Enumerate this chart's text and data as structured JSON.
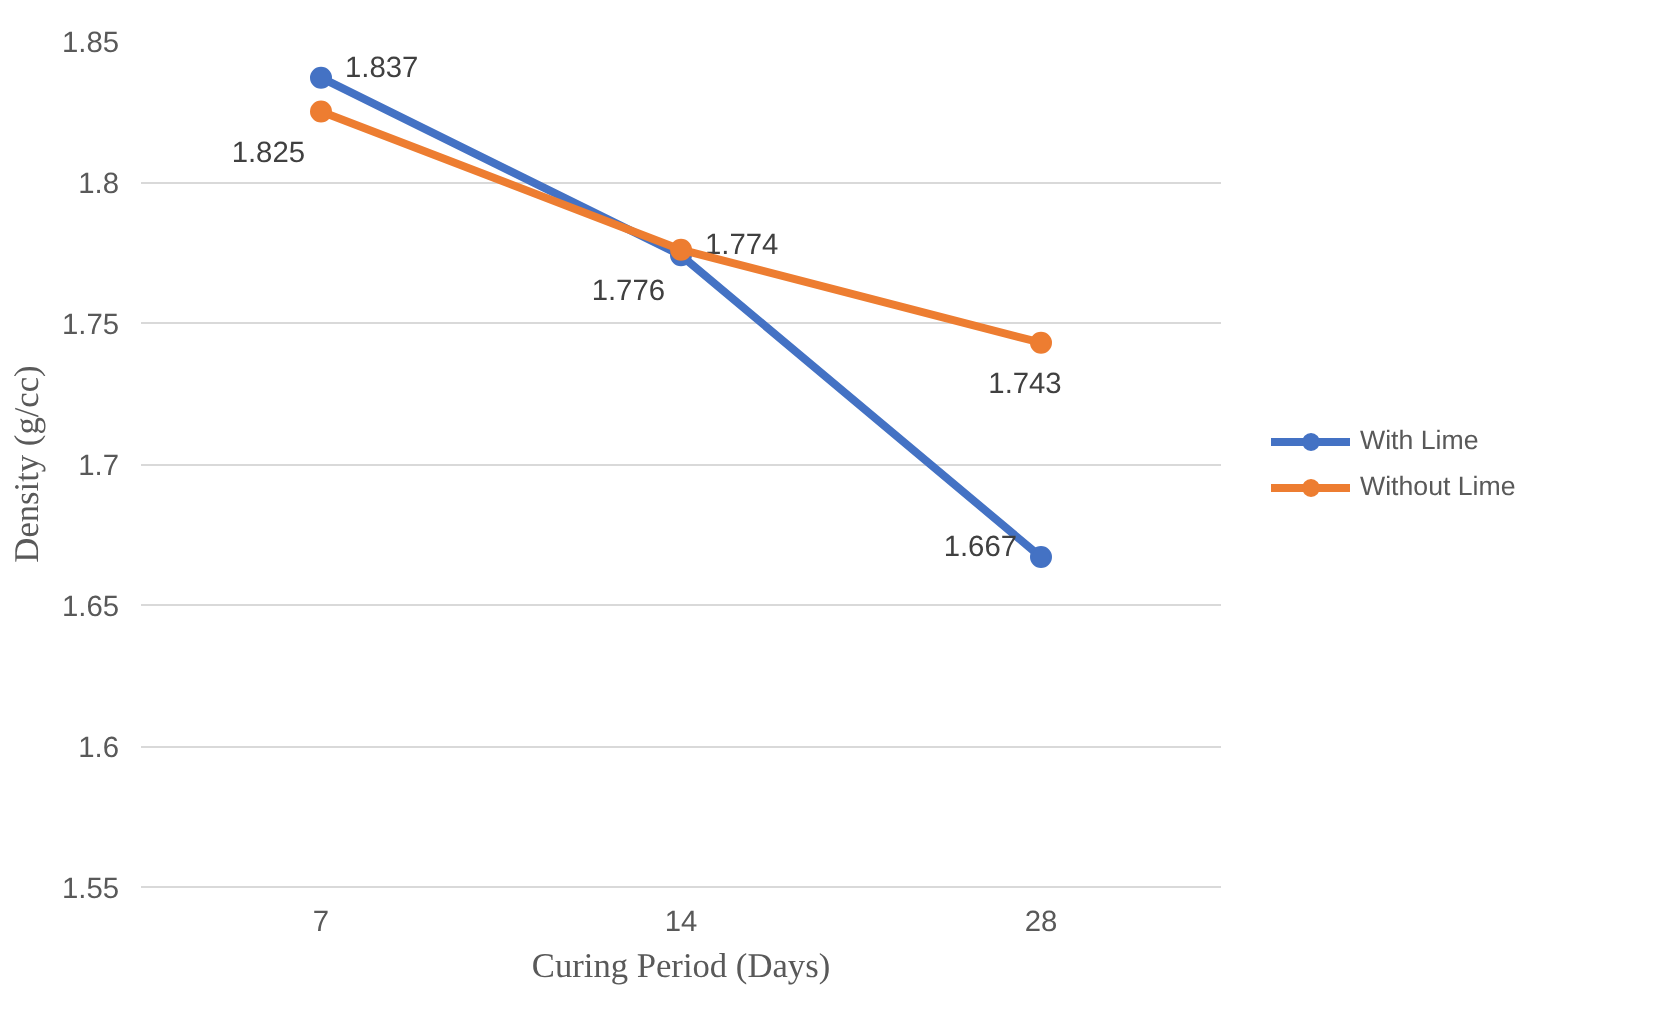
{
  "chart_data": {
    "type": "line",
    "xlabel": "Curing Period (Days)",
    "ylabel": "Density (g/cc)",
    "categories": [
      "7",
      "14",
      "28"
    ],
    "series": [
      {
        "name": "With Lime",
        "color": "#4472c4",
        "values": [
          1.837,
          1.774,
          1.667
        ]
      },
      {
        "name": "Without Lime",
        "color": "#ed7d31",
        "values": [
          1.825,
          1.776,
          1.743
        ]
      }
    ],
    "ylim": [
      1.55,
      1.85
    ],
    "yticks": [
      1.55,
      1.6,
      1.65,
      1.7,
      1.75,
      1.8,
      1.85
    ],
    "grid": "y",
    "legend": "right",
    "marker": "circle",
    "line_style": "solid",
    "data_labels": true
  }
}
